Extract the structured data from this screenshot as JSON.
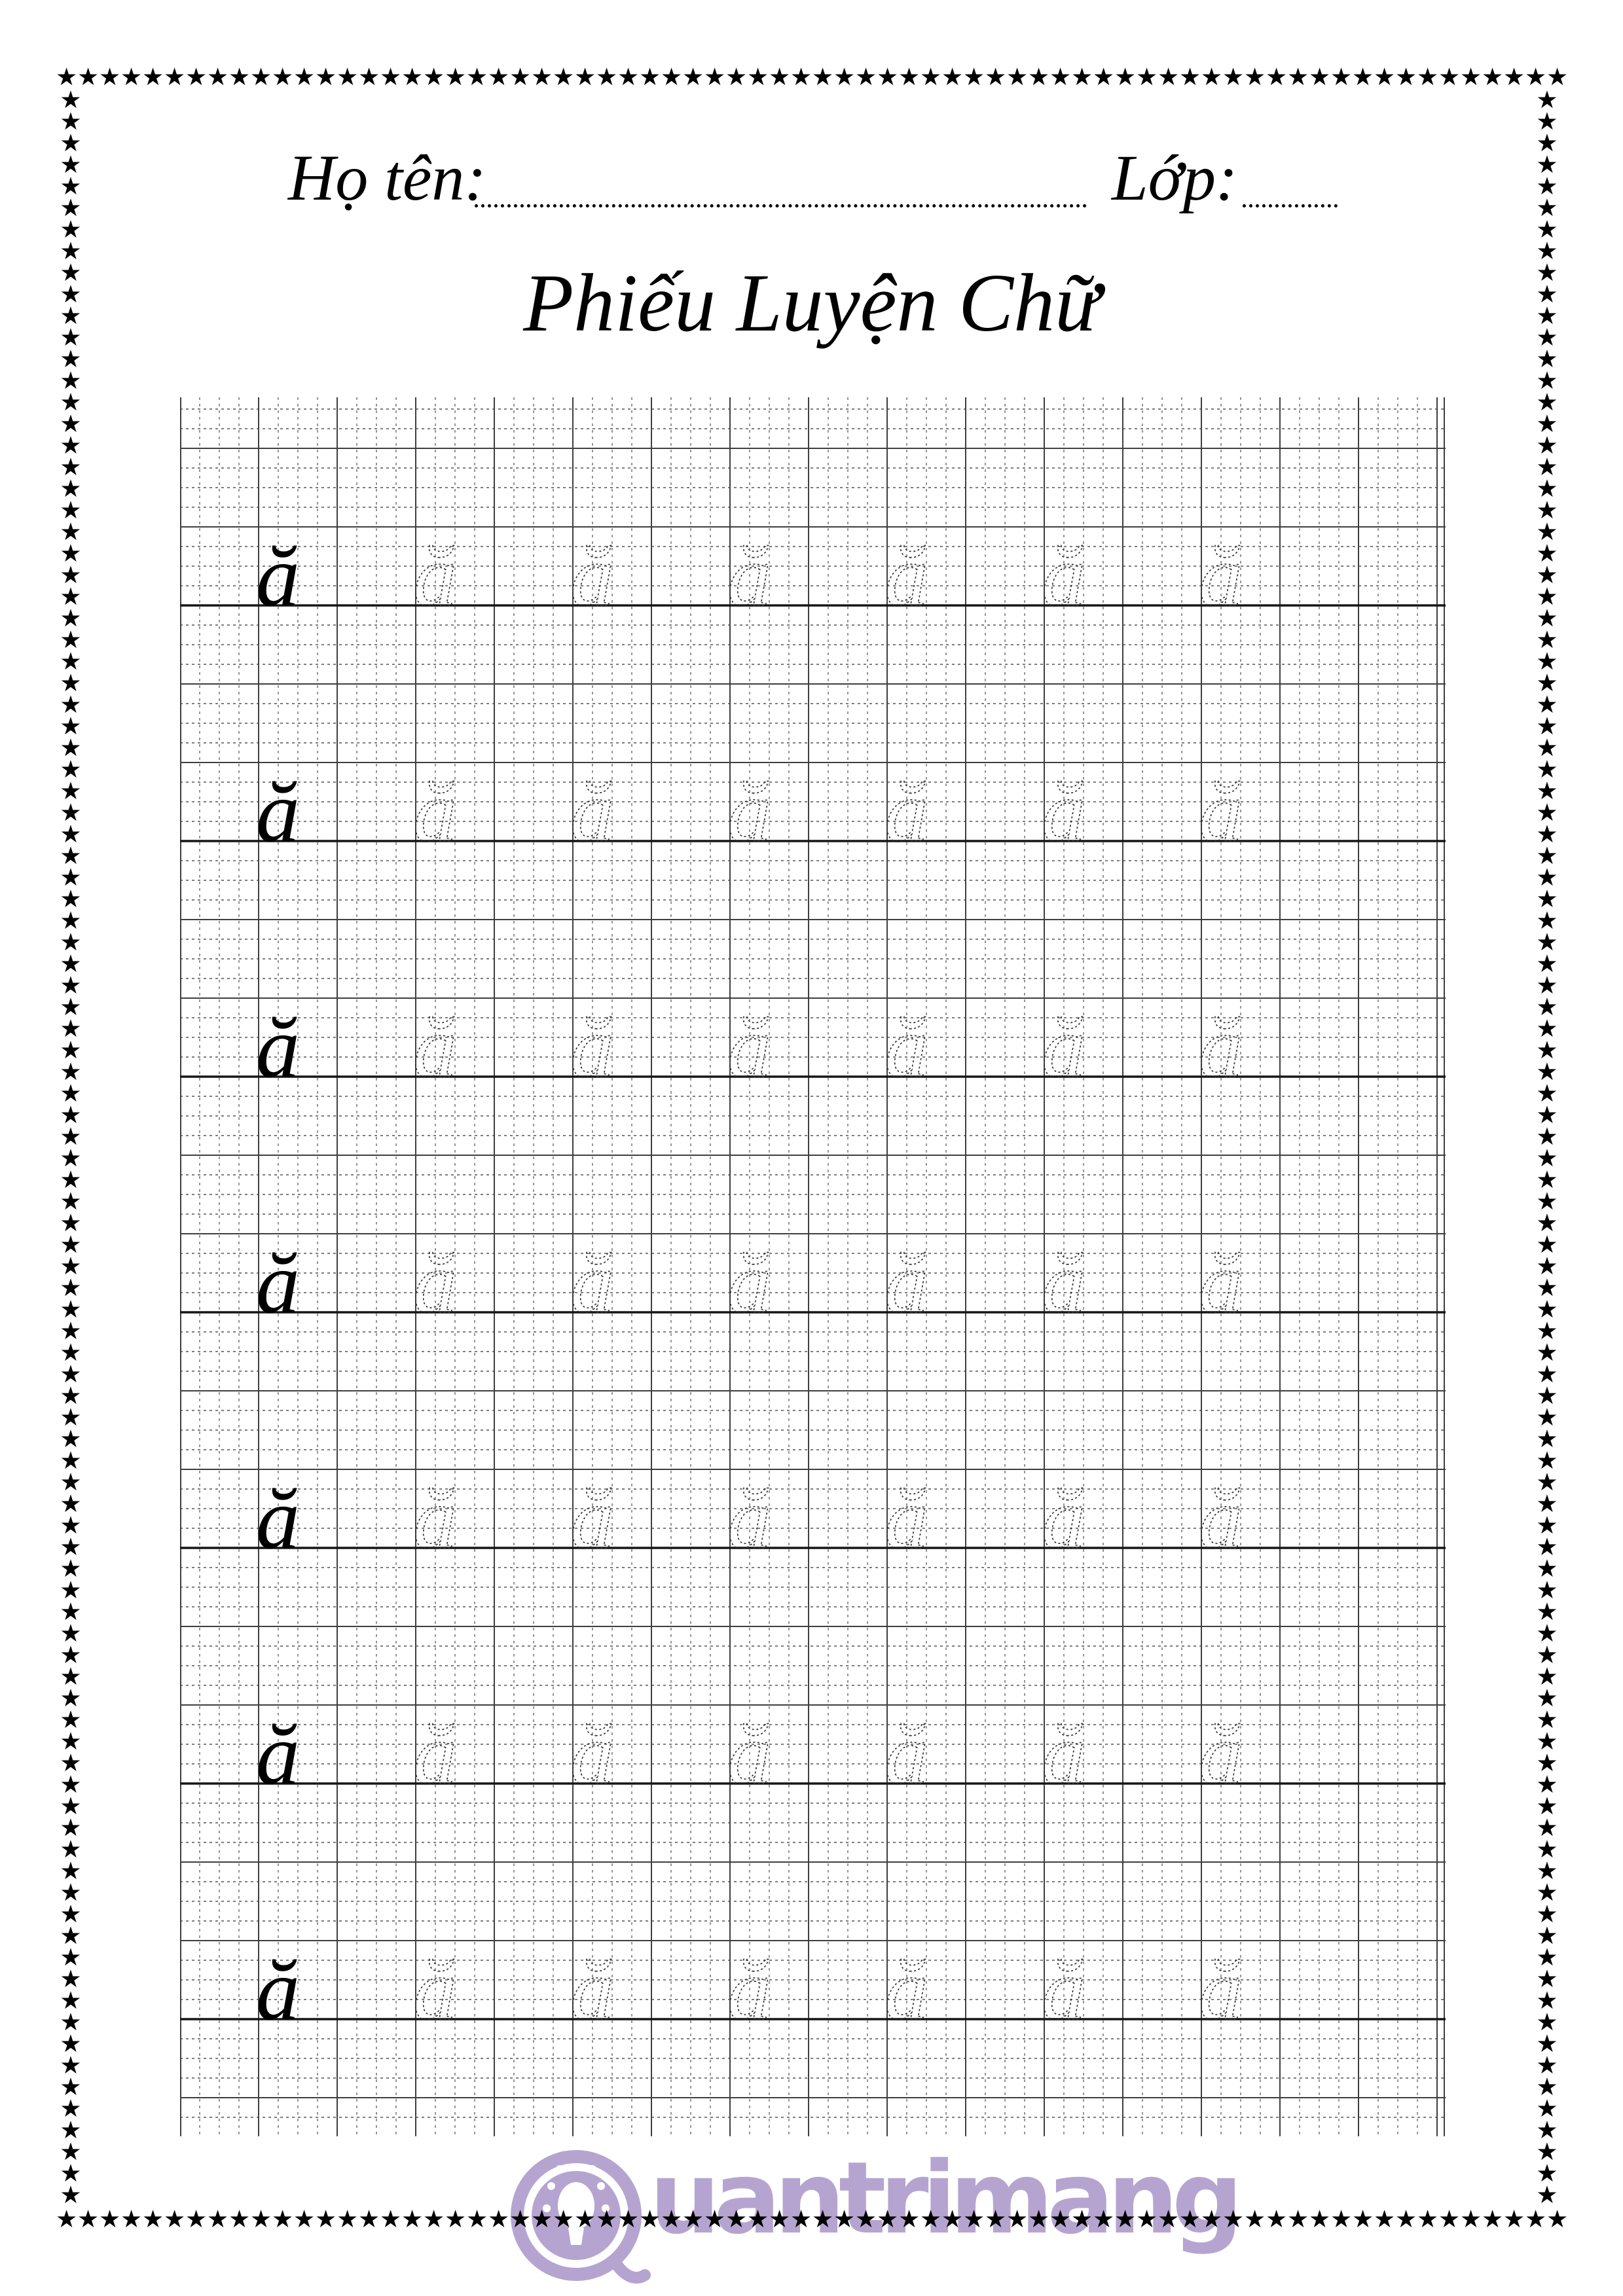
{
  "header": {
    "name_label": "Họ tên:",
    "class_label": "Lớp:"
  },
  "title": "Phiếu Luyện Chữ",
  "practice": {
    "letter": "ă",
    "rows": 7,
    "letters_per_row": 7,
    "first_letter_style": "solid",
    "other_letters_style": "dotted-trace"
  },
  "watermark": {
    "text": "uantrimang",
    "logo": "lightbulb-circle-logo",
    "color": "#b6a4d0"
  },
  "border": {
    "star": "★",
    "color": "#000000"
  },
  "colors": {
    "grid_major": "#3f3f3f",
    "grid_minor": "#8a8a8a",
    "baseline": "#161616",
    "letter": "#000000",
    "trace_letter": "#333333"
  }
}
